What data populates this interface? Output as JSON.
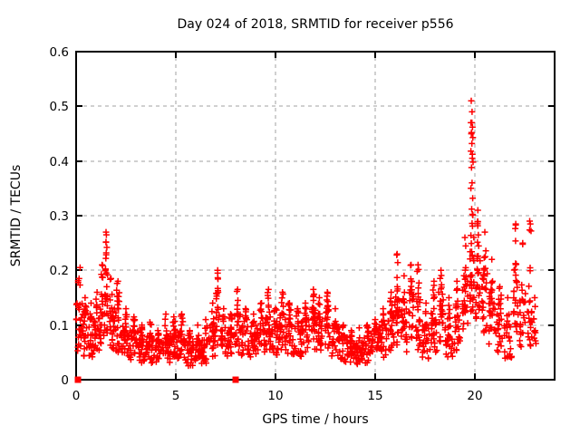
{
  "chart_data": {
    "type": "scatter",
    "title": "Day 024 of 2018, SRMTID for receiver p556",
    "xlabel": "GPS time / hours",
    "ylabel": "SRMTID / TECUs",
    "xlim": [
      0,
      24
    ],
    "ylim": [
      0,
      0.6
    ],
    "xticks": [
      0,
      5,
      10,
      15,
      20
    ],
    "yticks": [
      0,
      0.1,
      0.2,
      0.3,
      0.4,
      0.5,
      0.6
    ],
    "xtick_labels": [
      "0",
      "5",
      "10",
      "15",
      "20"
    ],
    "ytick_labels": [
      "0",
      "0.1",
      "0.2",
      "0.3",
      "0.4",
      "0.5",
      "0.6"
    ],
    "grid": "dashed",
    "legend": "none",
    "marker": "plus",
    "marker_color": "#ff0000",
    "grid_color": "#a0a0a0",
    "border_color": "#000000",
    "zero_square_markers": [
      [
        0.1,
        0
      ],
      [
        8.0,
        0
      ]
    ],
    "peak_points": [
      [
        19.82,
        0.51
      ],
      [
        19.86,
        0.49
      ],
      [
        19.8,
        0.47
      ],
      [
        19.88,
        0.462
      ],
      [
        19.83,
        0.452
      ],
      [
        19.9,
        0.443
      ],
      [
        19.85,
        0.432
      ],
      [
        19.8,
        0.418
      ],
      [
        19.87,
        0.405
      ],
      [
        19.91,
        0.398
      ],
      [
        19.83,
        0.388
      ],
      [
        19.86,
        0.36
      ],
      [
        19.8,
        0.35
      ],
      [
        19.89,
        0.332
      ],
      [
        19.84,
        0.312
      ],
      [
        19.9,
        0.301
      ],
      [
        22.78,
        0.285
      ],
      [
        22.82,
        0.272
      ],
      [
        1.52,
        0.265
      ],
      [
        1.5,
        0.252
      ],
      [
        1.54,
        0.242
      ],
      [
        1.51,
        0.232
      ],
      [
        1.49,
        0.222
      ],
      [
        16.08,
        0.228
      ],
      [
        0.2,
        0.205
      ],
      [
        12.62,
        0.158
      ],
      [
        7.1,
        0.195
      ],
      [
        22.05,
        0.283
      ]
    ],
    "density_bins": [
      [
        0.15,
        0.15,
        0.05,
        0.14,
        0.185,
        26
      ],
      [
        0.45,
        0.15,
        0.04,
        0.12,
        0.15,
        28
      ],
      [
        0.75,
        0.15,
        0.04,
        0.11,
        0.14,
        28
      ],
      [
        1.05,
        0.15,
        0.05,
        0.12,
        0.16,
        26
      ],
      [
        1.3,
        0.1,
        0.06,
        0.15,
        0.21,
        22
      ],
      [
        1.5,
        0.08,
        0.08,
        0.2,
        0.27,
        24
      ],
      [
        1.75,
        0.15,
        0.05,
        0.13,
        0.185,
        26
      ],
      [
        2.1,
        0.2,
        0.05,
        0.13,
        0.18,
        34
      ],
      [
        2.5,
        0.2,
        0.04,
        0.1,
        0.13,
        30
      ],
      [
        2.9,
        0.2,
        0.035,
        0.09,
        0.115,
        32
      ],
      [
        3.3,
        0.2,
        0.03,
        0.08,
        0.1,
        32
      ],
      [
        3.7,
        0.2,
        0.03,
        0.08,
        0.105,
        32
      ],
      [
        4.1,
        0.2,
        0.03,
        0.07,
        0.09,
        32
      ],
      [
        4.5,
        0.2,
        0.03,
        0.08,
        0.12,
        32
      ],
      [
        4.9,
        0.2,
        0.035,
        0.09,
        0.115,
        32
      ],
      [
        5.3,
        0.2,
        0.03,
        0.09,
        0.12,
        30
      ],
      [
        5.7,
        0.2,
        0.025,
        0.07,
        0.09,
        30
      ],
      [
        6.1,
        0.2,
        0.03,
        0.07,
        0.1,
        30
      ],
      [
        6.5,
        0.2,
        0.03,
        0.08,
        0.11,
        30
      ],
      [
        6.85,
        0.15,
        0.04,
        0.1,
        0.14,
        24
      ],
      [
        7.1,
        0.08,
        0.05,
        0.16,
        0.2,
        20
      ],
      [
        7.4,
        0.15,
        0.04,
        0.1,
        0.13,
        24
      ],
      [
        7.75,
        0.2,
        0.04,
        0.09,
        0.12,
        28
      ],
      [
        8.1,
        0.15,
        0.05,
        0.12,
        0.165,
        28
      ],
      [
        8.5,
        0.2,
        0.04,
        0.1,
        0.13,
        30
      ],
      [
        8.9,
        0.2,
        0.04,
        0.1,
        0.12,
        30
      ],
      [
        9.3,
        0.2,
        0.05,
        0.11,
        0.14,
        30
      ],
      [
        9.65,
        0.15,
        0.05,
        0.12,
        0.165,
        28
      ],
      [
        10.0,
        0.2,
        0.04,
        0.1,
        0.13,
        30
      ],
      [
        10.35,
        0.15,
        0.05,
        0.12,
        0.16,
        28
      ],
      [
        10.7,
        0.2,
        0.04,
        0.11,
        0.14,
        30
      ],
      [
        11.1,
        0.2,
        0.04,
        0.1,
        0.13,
        30
      ],
      [
        11.5,
        0.2,
        0.05,
        0.11,
        0.14,
        30
      ],
      [
        11.9,
        0.12,
        0.05,
        0.13,
        0.165,
        28
      ],
      [
        12.2,
        0.15,
        0.05,
        0.12,
        0.15,
        28
      ],
      [
        12.6,
        0.12,
        0.05,
        0.13,
        0.16,
        26
      ],
      [
        13.0,
        0.2,
        0.04,
        0.1,
        0.13,
        30
      ],
      [
        13.4,
        0.2,
        0.03,
        0.08,
        0.1,
        30
      ],
      [
        13.8,
        0.2,
        0.025,
        0.07,
        0.09,
        30
      ],
      [
        14.2,
        0.2,
        0.025,
        0.07,
        0.095,
        30
      ],
      [
        14.6,
        0.2,
        0.03,
        0.08,
        0.1,
        30
      ],
      [
        15.0,
        0.2,
        0.04,
        0.09,
        0.11,
        30
      ],
      [
        15.4,
        0.2,
        0.04,
        0.1,
        0.13,
        30
      ],
      [
        15.8,
        0.15,
        0.05,
        0.12,
        0.16,
        30
      ],
      [
        16.1,
        0.12,
        0.06,
        0.16,
        0.23,
        28
      ],
      [
        16.45,
        0.15,
        0.05,
        0.14,
        0.19,
        28
      ],
      [
        16.8,
        0.12,
        0.06,
        0.16,
        0.21,
        28
      ],
      [
        17.15,
        0.15,
        0.05,
        0.15,
        0.21,
        28
      ],
      [
        17.55,
        0.2,
        0.03,
        0.1,
        0.14,
        28
      ],
      [
        17.95,
        0.15,
        0.05,
        0.13,
        0.18,
        28
      ],
      [
        18.3,
        0.12,
        0.06,
        0.16,
        0.2,
        26
      ],
      [
        18.7,
        0.2,
        0.04,
        0.11,
        0.15,
        28
      ],
      [
        19.1,
        0.15,
        0.05,
        0.13,
        0.18,
        28
      ],
      [
        19.5,
        0.15,
        0.08,
        0.19,
        0.26,
        30
      ],
      [
        19.85,
        0.1,
        0.12,
        0.28,
        0.47,
        34
      ],
      [
        20.15,
        0.12,
        0.1,
        0.24,
        0.31,
        30
      ],
      [
        20.5,
        0.15,
        0.08,
        0.2,
        0.27,
        30
      ],
      [
        20.85,
        0.15,
        0.06,
        0.16,
        0.22,
        28
      ],
      [
        21.25,
        0.2,
        0.04,
        0.12,
        0.17,
        28
      ],
      [
        21.65,
        0.2,
        0.03,
        0.1,
        0.15,
        26
      ],
      [
        22.05,
        0.12,
        0.08,
        0.21,
        0.285,
        28
      ],
      [
        22.4,
        0.15,
        0.06,
        0.16,
        0.25,
        24
      ],
      [
        22.75,
        0.12,
        0.05,
        0.14,
        0.29,
        22
      ],
      [
        23.0,
        0.08,
        0.06,
        0.12,
        0.15,
        10
      ]
    ]
  }
}
